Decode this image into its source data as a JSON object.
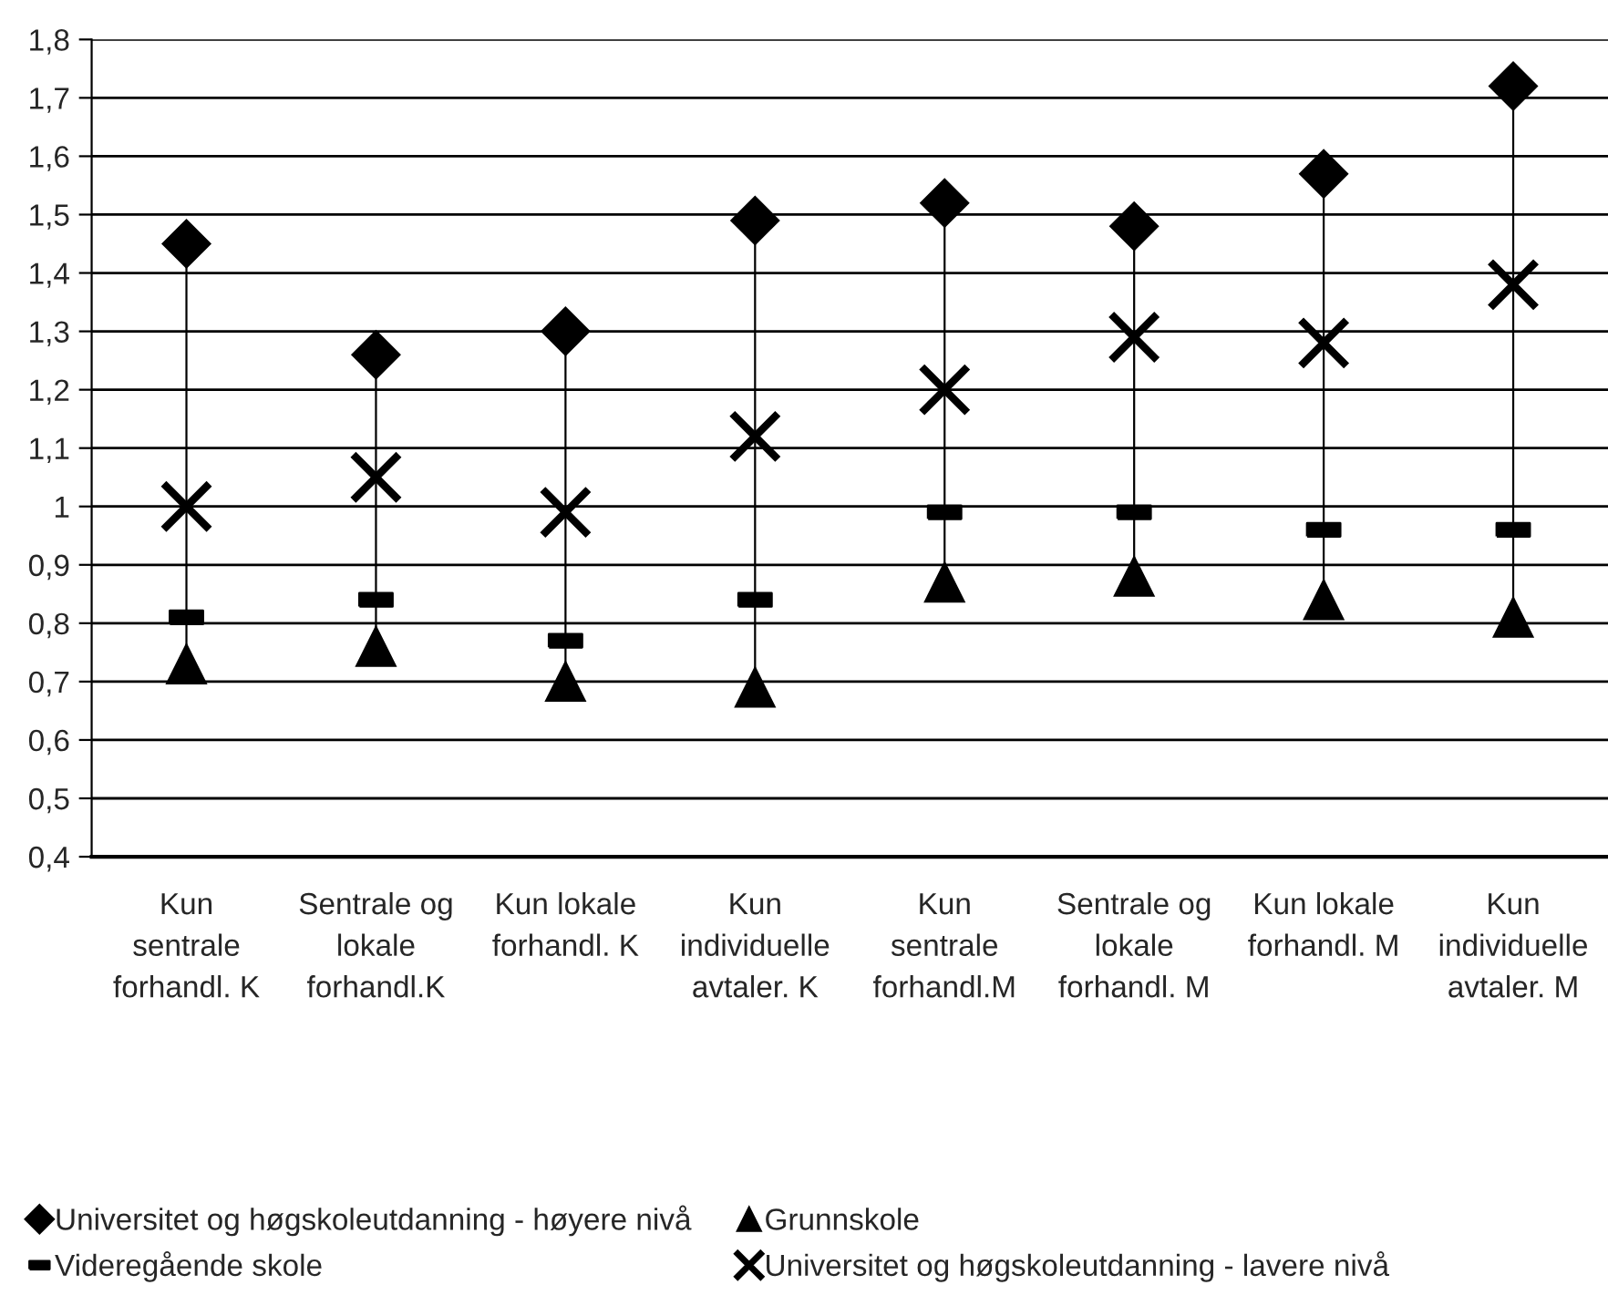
{
  "chart_data": {
    "type": "scatter",
    "categories": [
      "Kun\nsentrale\nforhandl. K",
      "Sentrale og\nlokale\nforhandl.K",
      "Kun lokale\nforhandl. K",
      "Kun\nindividuelle\navtaler. K",
      "Kun\nsentrale\nforhandl.M",
      "Sentrale og\nlokale\nforhandl. M",
      "Kun lokale\nforhandl. M",
      "Kun\nindividuelle\navtaler. M"
    ],
    "series": [
      {
        "name": "Universitet og høgskoleutdanning - høyere nivå",
        "color": "#000000",
        "marker": "diamond",
        "values": [
          1.45,
          1.26,
          1.3,
          1.49,
          1.52,
          1.48,
          1.57,
          1.72
        ]
      },
      {
        "name": "Grunnskole",
        "color": "#000000",
        "marker": "triangle",
        "values": [
          0.73,
          0.76,
          0.7,
          0.69,
          0.87,
          0.88,
          0.84,
          0.81
        ]
      },
      {
        "name": "Videregående skole",
        "color": "#000000",
        "values": [
          0.81,
          0.84,
          0.77,
          0.84,
          0.99,
          0.99,
          0.96,
          0.96
        ]
      },
      {
        "name": "Universitet og høgskoleutdanning - lavere nivå",
        "color": "#000000",
        "marker": "cross",
        "values": [
          1.0,
          1.05,
          0.99,
          1.12,
          1.2,
          1.29,
          1.28,
          1.38
        ]
      }
    ],
    "ylim": [
      0.4,
      1.8
    ],
    "yticks": [
      {
        "value": 0.4,
        "label": "0,4"
      },
      {
        "value": 0.5,
        "label": "0,5"
      },
      {
        "value": 0.6,
        "label": "0,6"
      },
      {
        "value": 0.7,
        "label": "0,7"
      },
      {
        "value": 0.8,
        "label": "0,8"
      },
      {
        "value": 0.9,
        "label": "0,9"
      },
      {
        "value": 1,
        "label": "1"
      },
      {
        "value": 1.1,
        "label": "1,1"
      },
      {
        "value": 1.2,
        "label": "1,2"
      },
      {
        "value": 1.3,
        "label": "1,3"
      },
      {
        "value": 1.4,
        "label": "1,4"
      },
      {
        "value": 1.5,
        "label": "1,5"
      },
      {
        "value": 1.6,
        "label": "1,6"
      },
      {
        "value": 1.7,
        "label": "1,7"
      },
      {
        "value": 1.8,
        "label": "1,8"
      }
    ],
    "grid": "y",
    "legend": "bottom"
  }
}
